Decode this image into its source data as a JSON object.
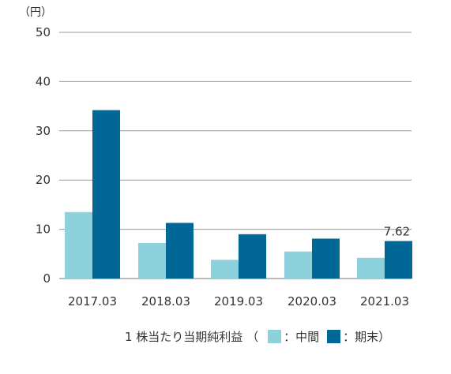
{
  "chart_data": {
    "type": "bar",
    "unit_label": "（円）",
    "categories": [
      "2017.03",
      "2018.03",
      "2019.03",
      "2020.03",
      "2021.03"
    ],
    "series": [
      {
        "name": "中間",
        "color": "#8dd1dc",
        "values": [
          13.5,
          7.2,
          3.8,
          5.5,
          4.2
        ]
      },
      {
        "name": "期末",
        "color": "#006796",
        "values": [
          34.2,
          11.3,
          9.0,
          8.1,
          7.62
        ]
      }
    ],
    "ylim": [
      0,
      50
    ],
    "yticks": [
      0,
      10,
      20,
      30,
      40,
      50
    ],
    "grid": true,
    "annotation": {
      "text": "7.62"
    },
    "legend": {
      "prefix": "1 株当たり当期純利益 （",
      "items": [
        {
          "label": "：中間",
          "color": "#8dd1dc"
        },
        {
          "label": "：期末）",
          "color": "#006796"
        }
      ]
    }
  }
}
